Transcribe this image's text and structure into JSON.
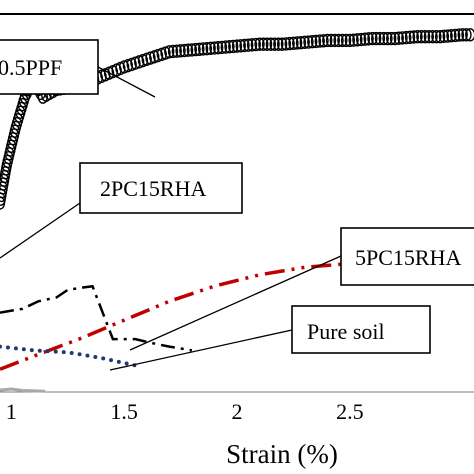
{
  "chart_data": {
    "type": "scatter",
    "xlabel": "Strain (%)",
    "ylabel": "",
    "title": "",
    "xlim": [
      0.95,
      3.05
    ],
    "ylim": [
      0,
      1
    ],
    "grid": false,
    "x_ticks": [
      1,
      1.5,
      2,
      2.5
    ],
    "x_tick_labels": [
      "1",
      "1.5",
      "2",
      "2.5"
    ],
    "series": [
      {
        "name": "0.5PPF",
        "style": "open-circle markers",
        "color": "#000000",
        "points": [
          [
            0.95,
            0.5
          ],
          [
            0.98,
            0.6
          ],
          [
            1.02,
            0.7
          ],
          [
            1.06,
            0.78
          ],
          [
            1.1,
            0.83
          ],
          [
            1.12,
            0.8
          ],
          [
            1.14,
            0.78
          ],
          [
            1.2,
            0.8
          ],
          [
            1.3,
            0.81
          ],
          [
            1.4,
            0.835
          ],
          [
            1.5,
            0.86
          ],
          [
            1.6,
            0.88
          ],
          [
            1.7,
            0.9
          ],
          [
            1.8,
            0.905
          ],
          [
            1.9,
            0.91
          ],
          [
            2.0,
            0.915
          ],
          [
            2.1,
            0.92
          ],
          [
            2.2,
            0.92
          ],
          [
            2.3,
            0.925
          ],
          [
            2.4,
            0.93
          ],
          [
            2.5,
            0.93
          ],
          [
            2.6,
            0.935
          ],
          [
            2.7,
            0.935
          ],
          [
            2.8,
            0.94
          ],
          [
            2.9,
            0.94
          ],
          [
            3.0,
            0.945
          ],
          [
            3.05,
            0.945
          ]
        ]
      },
      {
        "name": "2PC15RHA",
        "style": "dash-dot line",
        "color": "#000000",
        "points": [
          [
            0.95,
            0.21
          ],
          [
            1.05,
            0.22
          ],
          [
            1.12,
            0.24
          ],
          [
            1.2,
            0.25
          ],
          [
            1.25,
            0.27
          ],
          [
            1.3,
            0.275
          ],
          [
            1.36,
            0.28
          ],
          [
            1.45,
            0.14
          ],
          [
            1.55,
            0.14
          ],
          [
            1.62,
            0.13
          ],
          [
            1.7,
            0.12
          ],
          [
            1.8,
            0.11
          ]
        ]
      },
      {
        "name": "5PC15RHA",
        "style": "dash-dot-dot line",
        "color": "#c00000",
        "points": [
          [
            0.95,
            0.06
          ],
          [
            1.1,
            0.095
          ],
          [
            1.3,
            0.14
          ],
          [
            1.5,
            0.19
          ],
          [
            1.7,
            0.24
          ],
          [
            1.9,
            0.28
          ],
          [
            2.1,
            0.31
          ],
          [
            2.3,
            0.33
          ],
          [
            2.5,
            0.34
          ],
          [
            2.7,
            0.35
          ],
          [
            2.9,
            0.355
          ],
          [
            3.05,
            0.36
          ]
        ]
      },
      {
        "name": "Pure soil",
        "style": "dotted line",
        "color": "#1f3b73",
        "points": [
          [
            0.95,
            0.12
          ],
          [
            1.1,
            0.11
          ],
          [
            1.25,
            0.105
          ],
          [
            1.4,
            0.09
          ],
          [
            1.55,
            0.07
          ]
        ]
      },
      {
        "name": "",
        "style": "solid line",
        "color": "#a8a8a8",
        "points": [
          [
            0.95,
            0.005
          ],
          [
            1.0,
            0.008
          ],
          [
            1.05,
            0.004
          ],
          [
            1.1,
            0.003
          ],
          [
            1.15,
            0.002
          ]
        ]
      }
    ],
    "annotations": [
      {
        "text": "0.5PPF"
      },
      {
        "text": "2PC15RHA"
      },
      {
        "text": "5PC15RHA"
      },
      {
        "text": "Pure soil"
      }
    ]
  }
}
